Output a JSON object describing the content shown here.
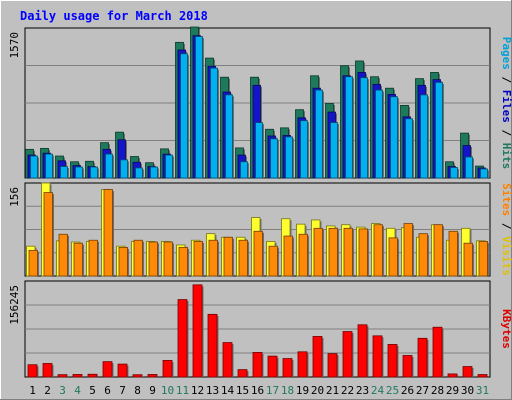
{
  "chart_data": {
    "type": "bar",
    "title": "Daily usage for March 2018",
    "days": [
      "1",
      "2",
      "3",
      "4",
      "5",
      "6",
      "7",
      "8",
      "9",
      "10",
      "11",
      "12",
      "13",
      "14",
      "15",
      "16",
      "17",
      "18",
      "19",
      "20",
      "21",
      "22",
      "23",
      "24",
      "25",
      "26",
      "27",
      "28",
      "29",
      "30",
      "31"
    ],
    "weekend_days": [
      "3",
      "4",
      "10",
      "11",
      "17",
      "18",
      "24",
      "25",
      "31"
    ],
    "grid": true,
    "panels": [
      {
        "name": "hits-files-pages",
        "ymax": 1570,
        "ymax_label": "1570",
        "right_label": [
          {
            "text": "Pages",
            "color": "#00a0d8"
          },
          {
            "text": " / ",
            "color": "#000000"
          },
          {
            "text": "Files",
            "color": "#0000c8"
          },
          {
            "text": " / ",
            "color": "#000000"
          },
          {
            "text": "Hits",
            "color": "#207860"
          }
        ],
        "series": [
          {
            "name": "Hits",
            "color": "#1e7a5c",
            "values": [
              300,
              310,
              230,
              170,
              175,
              370,
              480,
              225,
              160,
              305,
              1420,
              1580,
              1255,
              1055,
              315,
              1055,
              510,
              525,
              715,
              1070,
              780,
              1175,
              1225,
              1060,
              940,
              760,
              1040,
              1105,
              170,
              470,
              125
            ]
          },
          {
            "name": "Files",
            "color": "#1414c8",
            "values": [
              240,
              260,
              180,
              130,
              120,
              300,
              400,
              165,
              120,
              250,
              1340,
              1490,
              1170,
              900,
              240,
              970,
              440,
              445,
              630,
              940,
              690,
              1070,
              1105,
              980,
              875,
              640,
              970,
              1030,
              120,
              340,
              105
            ]
          },
          {
            "name": "Pages",
            "color": "#00b0f0",
            "values": [
              230,
              250,
              120,
              115,
              115,
              250,
              190,
              105,
              115,
              240,
              1300,
              1480,
              1150,
              870,
              170,
              580,
              410,
              430,
              600,
              920,
              580,
              1060,
              1050,
              920,
              850,
              620,
              870,
              1000,
              110,
              220,
              95
            ]
          }
        ]
      },
      {
        "name": "visits-sites",
        "ymax": 156,
        "ymax_label": "156",
        "right_label": [
          {
            "text": "Sites",
            "color": "#ff8000"
          },
          {
            "text": " / ",
            "color": "#000000"
          },
          {
            "text": "Visits",
            "color": "#e0c000"
          }
        ],
        "series": [
          {
            "name": "Visits",
            "color": "#ffff30",
            "values": [
              50,
              156,
              59,
              57,
              58,
              145,
              50,
              58,
              58,
              58,
              52,
              60,
              71,
              65,
              65,
              98,
              58,
              96,
              87,
              94,
              84,
              86,
              82,
              88,
              80,
              81,
              65,
              86,
              60,
              80,
              59
            ]
          },
          {
            "name": "Sites",
            "color": "#ff8a08",
            "values": [
              43,
              140,
              70,
              55,
              60,
              145,
              48,
              60,
              57,
              57,
              48,
              58,
              60,
              65,
              60,
              75,
              50,
              67,
              70,
              80,
              80,
              80,
              79,
              86,
              64,
              88,
              71,
              86,
              75,
              55,
              58
            ]
          }
        ]
      },
      {
        "name": "kbytes",
        "ymax": 156245,
        "ymax_label": "156245",
        "right_label": [
          {
            "text": "KBytes",
            "color": "#e00000"
          }
        ],
        "series": [
          {
            "name": "KBytes",
            "color": "#ff0000",
            "values": [
              20000,
              22000,
              3800,
              4100,
              4500,
              25000,
              21000,
              3700,
              4100,
              27000,
              126000,
              150000,
              102000,
              56000,
              12000,
              40000,
              34000,
              30000,
              41000,
              66000,
              38000,
              74000,
              85000,
              67000,
              53000,
              35000,
              63000,
              81000,
              5000,
              17000,
              4000
            ]
          }
        ]
      }
    ]
  }
}
